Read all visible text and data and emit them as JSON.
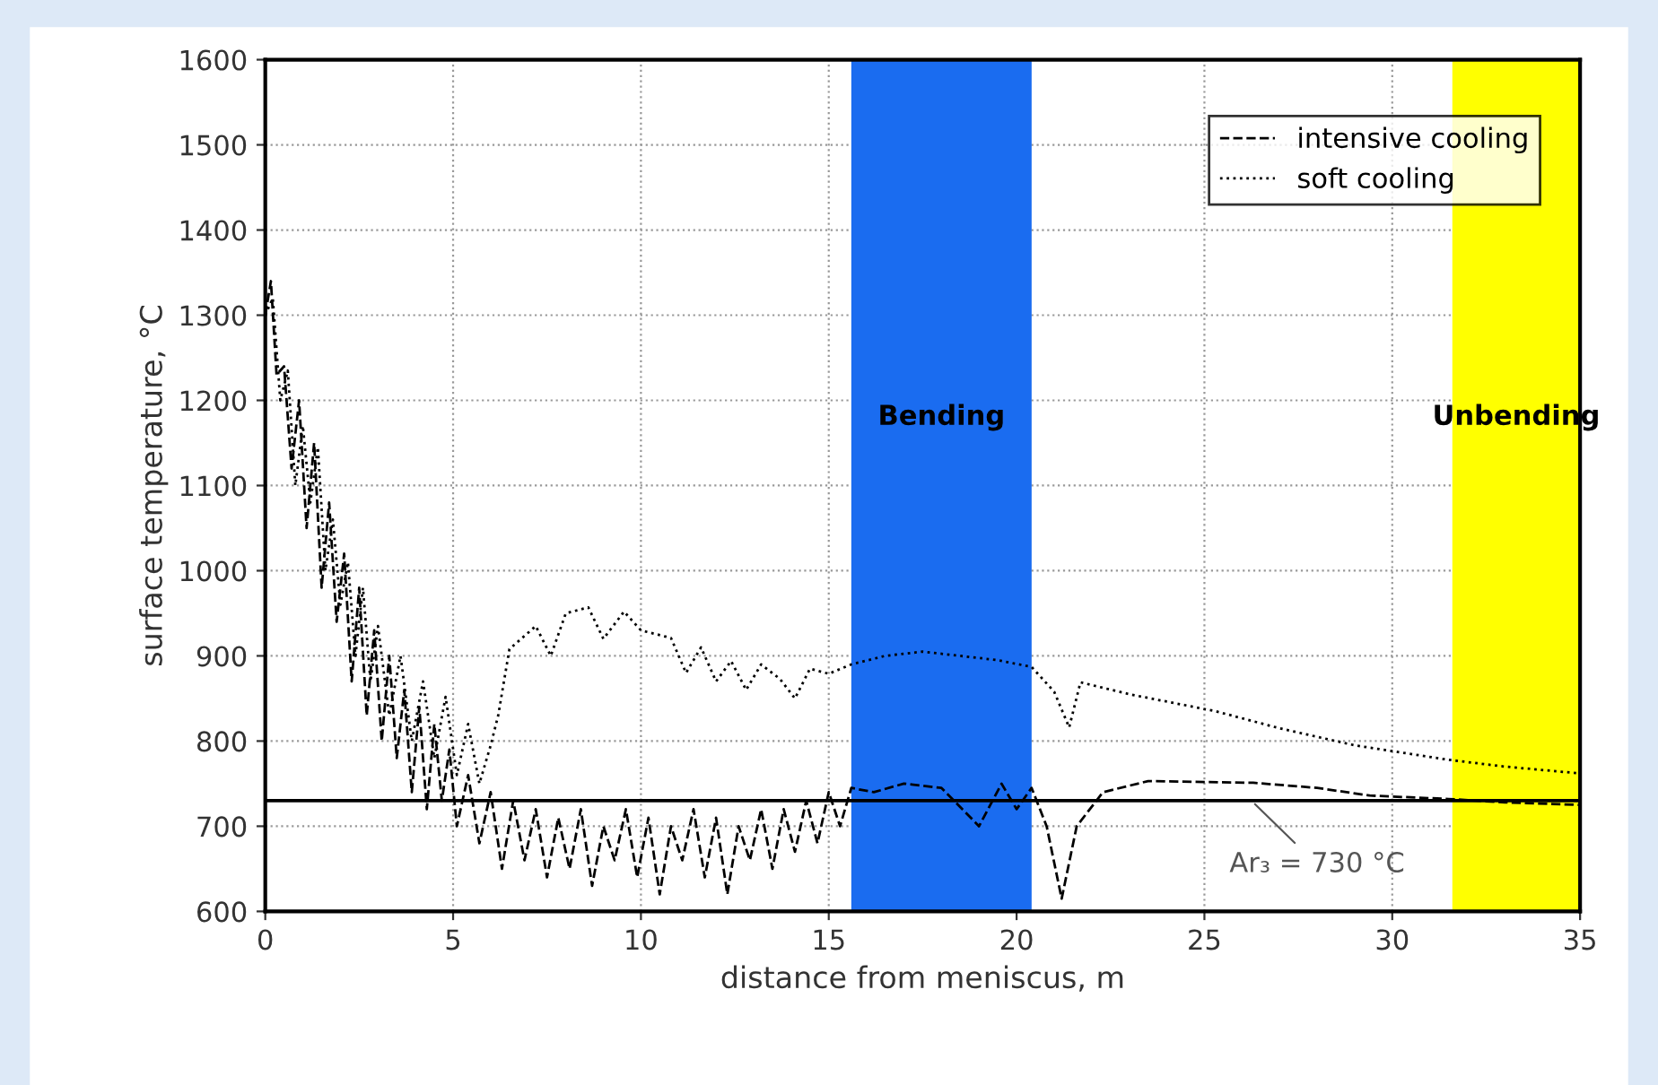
{
  "chart_data": {
    "type": "line",
    "xlabel": "distance from meniscus, m",
    "ylabel": "surface temperature, °C",
    "xlim": [
      0,
      35
    ],
    "xticks": [
      0,
      5,
      10,
      15,
      20,
      25,
      30,
      35
    ],
    "ylim": [
      600,
      1600
    ],
    "yticks": [
      600,
      700,
      800,
      900,
      1000,
      1100,
      1200,
      1300,
      1400,
      1500,
      1600
    ],
    "grid": true,
    "legend": "top right",
    "series": [
      {
        "name": "intensive cooling",
        "color": "#000000",
        "line_style": "dashed",
        "x": [
          0,
          0.15,
          0.3,
          0.5,
          0.7,
          0.9,
          1.1,
          1.3,
          1.5,
          1.7,
          1.9,
          2.1,
          2.3,
          2.5,
          2.7,
          2.9,
          3.1,
          3.3,
          3.5,
          3.7,
          3.9,
          4.1,
          4.3,
          4.5,
          4.7,
          4.9,
          5.1,
          5.4,
          5.7,
          6.0,
          6.3,
          6.6,
          6.9,
          7.2,
          7.5,
          7.8,
          8.1,
          8.4,
          8.7,
          9.0,
          9.3,
          9.6,
          9.9,
          10.2,
          10.5,
          10.8,
          11.1,
          11.4,
          11.7,
          12.0,
          12.3,
          12.6,
          12.9,
          13.2,
          13.5,
          13.8,
          14.1,
          14.4,
          14.7,
          15.0,
          15.3,
          15.6,
          16.2,
          17.0,
          18.0,
          19.0,
          19.6,
          20.0,
          20.4,
          20.8,
          21.2,
          21.6,
          22.3,
          23.5,
          25.0,
          26.3,
          28.0,
          29.4,
          31.5,
          33.0,
          35.0
        ],
        "values": [
          1300,
          1340,
          1230,
          1240,
          1120,
          1200,
          1050,
          1150,
          980,
          1080,
          940,
          1020,
          870,
          980,
          830,
          930,
          800,
          900,
          780,
          860,
          740,
          840,
          720,
          820,
          730,
          790,
          700,
          760,
          680,
          740,
          650,
          730,
          660,
          720,
          640,
          710,
          650,
          720,
          630,
          700,
          660,
          720,
          640,
          710,
          620,
          700,
          660,
          720,
          640,
          710,
          620,
          700,
          660,
          720,
          650,
          720,
          670,
          730,
          680,
          740,
          700,
          745,
          740,
          750,
          745,
          700,
          750,
          720,
          745,
          700,
          615,
          700,
          740,
          753,
          752,
          751,
          745,
          736,
          732,
          728,
          725
        ]
      },
      {
        "name": "soft cooling",
        "color": "#000000",
        "line_style": "dotted",
        "x": [
          0,
          0.2,
          0.4,
          0.6,
          0.8,
          1.0,
          1.2,
          1.4,
          1.6,
          1.8,
          2.0,
          2.2,
          2.4,
          2.6,
          2.8,
          3.0,
          3.3,
          3.6,
          3.9,
          4.2,
          4.5,
          4.8,
          5.1,
          5.4,
          5.7,
          6.0,
          6.2,
          6.5,
          7.2,
          7.6,
          8.0,
          8.6,
          9.0,
          9.55,
          10.0,
          10.8,
          11.2,
          11.6,
          12.0,
          12.4,
          12.8,
          13.2,
          13.7,
          14.1,
          14.5,
          15.0,
          15.6,
          16.5,
          17.5,
          18.5,
          19.5,
          20.4,
          21.0,
          21.4,
          21.7,
          23.0,
          25.3,
          27.0,
          29.0,
          31.5,
          33.0,
          35.0
        ],
        "values": [
          1300,
          1320,
          1200,
          1235,
          1100,
          1170,
          1080,
          1145,
          1000,
          1060,
          960,
          1010,
          900,
          980,
          870,
          935,
          830,
          900,
          800,
          870,
          780,
          852,
          760,
          820,
          750,
          795,
          830,
          908,
          935,
          900,
          950,
          957,
          920,
          952,
          930,
          921,
          880,
          910,
          870,
          894,
          860,
          890,
          873,
          850,
          885,
          879,
          890,
          900,
          905,
          900,
          895,
          887,
          858,
          816,
          869,
          855,
          835,
          815,
          795,
          778,
          770,
          762
        ]
      }
    ],
    "ref_lines": [
      {
        "axis": "y",
        "value": 730,
        "label": "Ar₃ = 730 °C",
        "color": "#000000",
        "line_style": "solid"
      }
    ],
    "bands": [
      {
        "axis": "x",
        "from": 15.6,
        "to": 20.4,
        "label": "Bending",
        "color": "#1a6cf0"
      },
      {
        "axis": "x",
        "from": 31.6,
        "to": 35,
        "label": "Unbending",
        "color": "#ffff00"
      }
    ]
  }
}
